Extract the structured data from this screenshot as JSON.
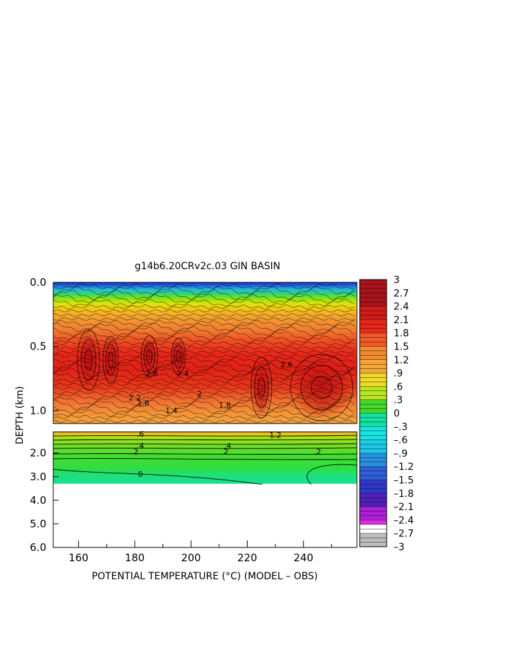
{
  "chart_data": {
    "type": "heatmap",
    "title": "g14b6.20CRv2c.03 GIN BASIN",
    "xlabel": "POTENTIAL TEMPERATURE (°C) (MODEL – OBS)",
    "ylabel": "DEPTH (km)",
    "x_ticks": [
      "160",
      "180",
      "200",
      "220",
      "240"
    ],
    "xlim": [
      151,
      259
    ],
    "upper_panel": {
      "ylim": [
        0.0,
        1.1
      ],
      "y_ticks": [
        "0.0",
        "0.5",
        "1.0"
      ]
    },
    "lower_panel": {
      "ylim": [
        1.1,
        6.0
      ],
      "y_ticks": [
        "2.0",
        "3.0",
        "4.0",
        "5.0",
        "6.0"
      ],
      "data_bottom_depth": 3.3
    },
    "colorbar": {
      "range": [
        -3,
        3
      ],
      "labels": [
        "3",
        "2.7",
        "2.4",
        "2.1",
        "1.8",
        "1.5",
        "1.2",
        ".9",
        ".6",
        ".3",
        "0",
        "–.3",
        "–.6",
        "–.9",
        "–1.2",
        "–1.5",
        "–1.8",
        "–2.1",
        "–2.4",
        "–2.7",
        "–3"
      ]
    },
    "contour_labels_upper": [
      {
        "text": "2.8",
        "x": 186,
        "depth": 0.73
      },
      {
        "text": "2.4",
        "x": 197,
        "depth": 0.73
      },
      {
        "text": "2.2",
        "x": 180,
        "depth": 0.92
      },
      {
        "text": "1.6",
        "x": 183,
        "depth": 0.96
      },
      {
        "text": "2",
        "x": 203,
        "depth": 0.89
      },
      {
        "text": "1.8",
        "x": 212,
        "depth": 0.98
      },
      {
        "text": "1.4",
        "x": 193,
        "depth": 1.02
      },
      {
        "text": "2.6",
        "x": 234,
        "depth": 0.66
      }
    ],
    "contour_labels_lower": [
      {
        "text": ".6",
        "x": 182,
        "depth": 1.3
      },
      {
        "text": ".4",
        "x": 182,
        "depth": 1.8
      },
      {
        "text": ".2",
        "x": 180,
        "depth": 2.05
      },
      {
        "text": "0",
        "x": 182,
        "depth": 3.0
      },
      {
        "text": ".4",
        "x": 213,
        "depth": 1.8
      },
      {
        "text": ".2",
        "x": 212,
        "depth": 2.05
      },
      {
        "text": "1.2",
        "x": 230,
        "depth": 1.35
      },
      {
        "text": ".2",
        "x": 245,
        "depth": 2.05
      }
    ]
  }
}
